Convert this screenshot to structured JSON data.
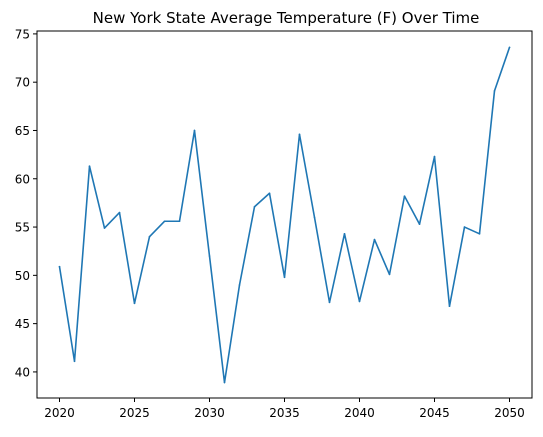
{
  "chart_data": {
    "type": "line",
    "title": "New York State Average Temperature (F) Over Time",
    "xlabel": "",
    "ylabel": "",
    "xlim": [
      2018.5,
      2051.5
    ],
    "ylim": [
      37.3,
      75.3
    ],
    "xticks": [
      2020,
      2025,
      2030,
      2035,
      2040,
      2045,
      2050
    ],
    "yticks": [
      40,
      45,
      50,
      55,
      60,
      65,
      70,
      75
    ],
    "grid": false,
    "legend": "none",
    "line_color": "#1f77b4",
    "series": [
      {
        "x": [
          2020,
          2021,
          2022,
          2023,
          2024,
          2025,
          2026,
          2027,
          2028,
          2029,
          2030,
          2031,
          2032,
          2033,
          2034,
          2035,
          2036,
          2037,
          2038,
          2039,
          2040,
          2041,
          2042,
          2043,
          2044,
          2045,
          2046,
          2047,
          2048,
          2049,
          2050
        ],
        "values": [
          50.9,
          41.1,
          61.3,
          54.9,
          56.5,
          47.1,
          54.0,
          55.6,
          55.6,
          65.0,
          52.0,
          38.9,
          49.0,
          57.1,
          58.5,
          49.8,
          64.6,
          56.0,
          47.2,
          54.3,
          47.3,
          53.7,
          50.1,
          58.2,
          55.3,
          62.3,
          46.8,
          55.0,
          54.3,
          69.1,
          73.6
        ]
      }
    ]
  }
}
